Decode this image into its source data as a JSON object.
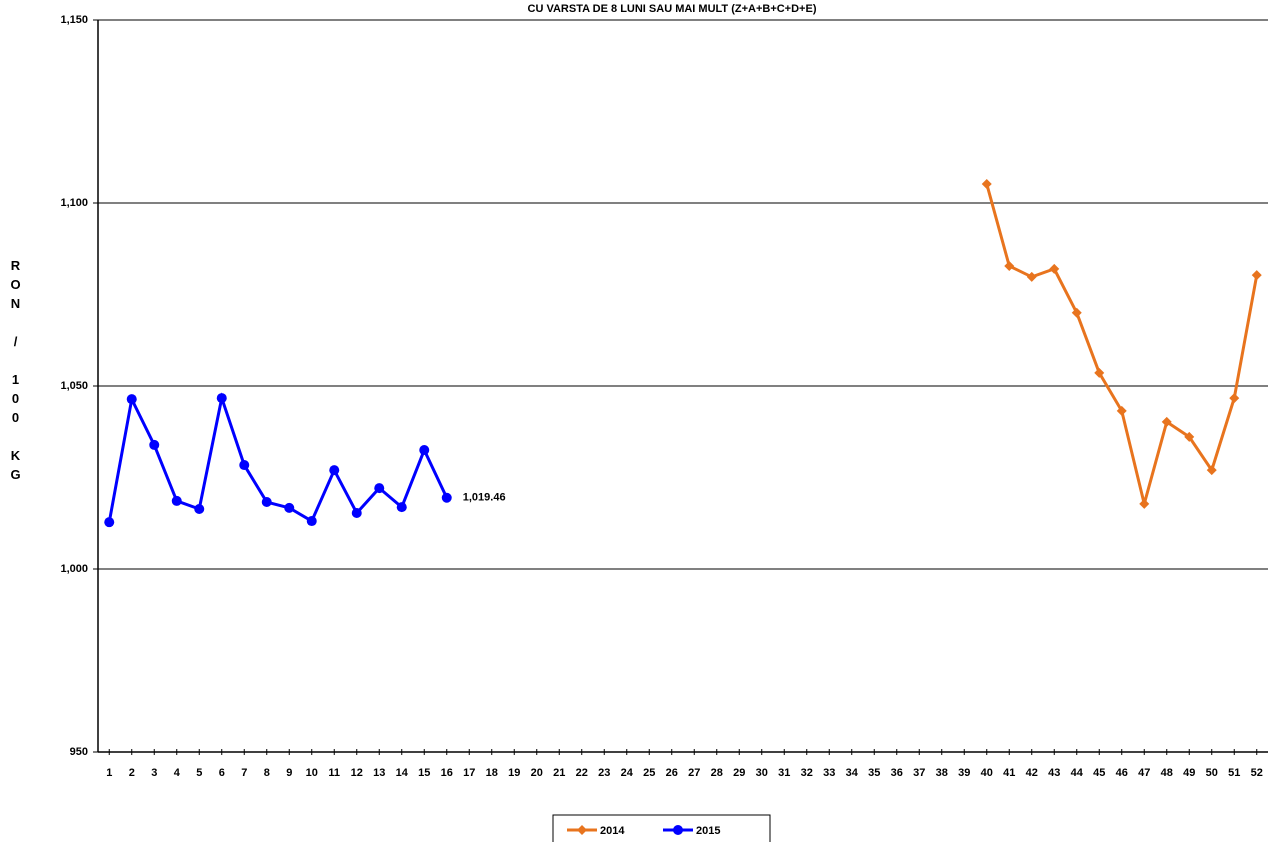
{
  "chart_data": {
    "type": "line",
    "title": "CU VARSTA DE 8 LUNI SAU MAI MULT (Z+A+B+C+D+E)",
    "y_label": "RON / 100 KG",
    "x": [
      1,
      2,
      3,
      4,
      5,
      6,
      7,
      8,
      9,
      10,
      11,
      12,
      13,
      14,
      15,
      16,
      17,
      18,
      19,
      20,
      21,
      22,
      23,
      24,
      25,
      26,
      27,
      28,
      29,
      30,
      31,
      32,
      33,
      34,
      35,
      36,
      37,
      38,
      39,
      40,
      41,
      42,
      43,
      44,
      45,
      46,
      47,
      48,
      49,
      50,
      51,
      52
    ],
    "xlim": [
      0.5,
      52.5
    ],
    "ylim": [
      950,
      1150
    ],
    "yticks": [
      {
        "value": 950,
        "label": "950"
      },
      {
        "value": 1000,
        "label": "1,000"
      },
      {
        "value": 1050,
        "label": "1,050"
      },
      {
        "value": 1100,
        "label": "1,100"
      },
      {
        "value": 1150,
        "label": "1,150"
      }
    ],
    "grid": true,
    "series": [
      {
        "name": "2014",
        "color": "#e8741e",
        "marker": "diamond",
        "values": [
          null,
          null,
          null,
          null,
          null,
          null,
          null,
          null,
          null,
          null,
          null,
          null,
          null,
          null,
          null,
          null,
          null,
          null,
          null,
          null,
          null,
          null,
          null,
          null,
          null,
          null,
          null,
          null,
          null,
          null,
          null,
          null,
          null,
          null,
          null,
          null,
          null,
          null,
          null,
          1105.2,
          1082.8,
          1079.8,
          1082.0,
          1070.0,
          1053.6,
          1043.2,
          1017.8,
          1040.2,
          1036.1,
          1027.0,
          1046.7,
          1080.3
        ]
      },
      {
        "name": "2015",
        "color": "#0000ff",
        "marker": "circle",
        "values": [
          1012.8,
          1046.4,
          1033.9,
          1018.6,
          1016.4,
          1046.7,
          1028.4,
          1018.3,
          1016.7,
          1013.1,
          1027.0,
          1015.3,
          1022.1,
          1016.9,
          1032.5,
          1019.46,
          null,
          null,
          null,
          null,
          null,
          null,
          null,
          null,
          null,
          null,
          null,
          null,
          null,
          null,
          null,
          null,
          null,
          null,
          null,
          null,
          null,
          null,
          null,
          null,
          null,
          null,
          null,
          null,
          null,
          null,
          null,
          null,
          null,
          null,
          null,
          null
        ],
        "value_labels": [
          null,
          null,
          null,
          null,
          null,
          null,
          null,
          null,
          null,
          null,
          null,
          null,
          null,
          null,
          null,
          "1,019.46",
          null,
          null,
          null,
          null,
          null,
          null,
          null,
          null,
          null,
          null,
          null,
          null,
          null,
          null,
          null,
          null,
          null,
          null,
          null,
          null,
          null,
          null,
          null,
          null,
          null,
          null,
          null,
          null,
          null,
          null,
          null,
          null,
          null,
          null,
          null,
          null
        ]
      }
    ],
    "legend": "bottom"
  }
}
